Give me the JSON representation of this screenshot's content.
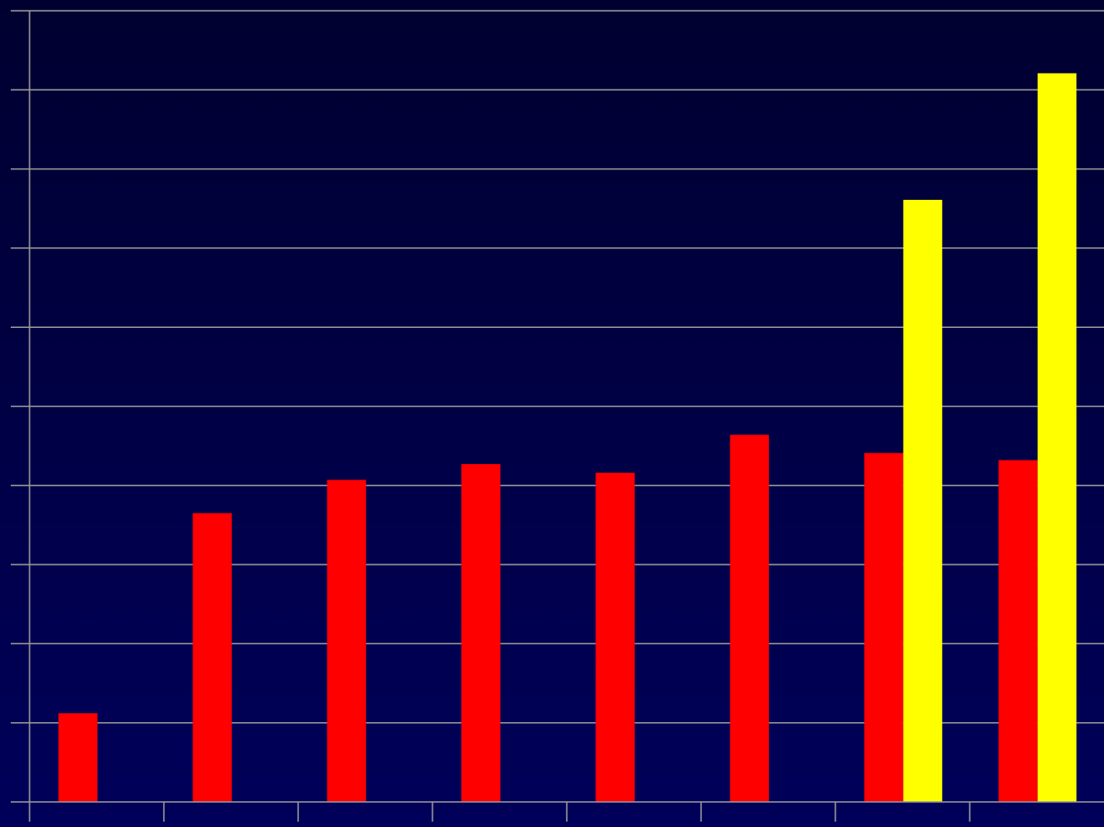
{
  "chart_data": {
    "type": "bar",
    "categories": [
      "",
      "",
      "",
      "",
      "",
      "",
      "",
      ""
    ],
    "ylim": [
      0,
      10
    ],
    "grid": true,
    "legend": "none",
    "series": [
      {
        "color": "#ff0000",
        "values": [
          1.12,
          3.65,
          4.07,
          4.27,
          4.16,
          4.64,
          4.41,
          4.32
        ]
      },
      {
        "color": "#ffff00",
        "values": [
          null,
          null,
          null,
          null,
          null,
          null,
          7.61,
          9.21
        ]
      }
    ]
  },
  "colors": {
    "background_top": "#000030",
    "background_bottom": "#00005a",
    "gridline": "#9a9a9a",
    "axis": "#9a9a9a"
  }
}
